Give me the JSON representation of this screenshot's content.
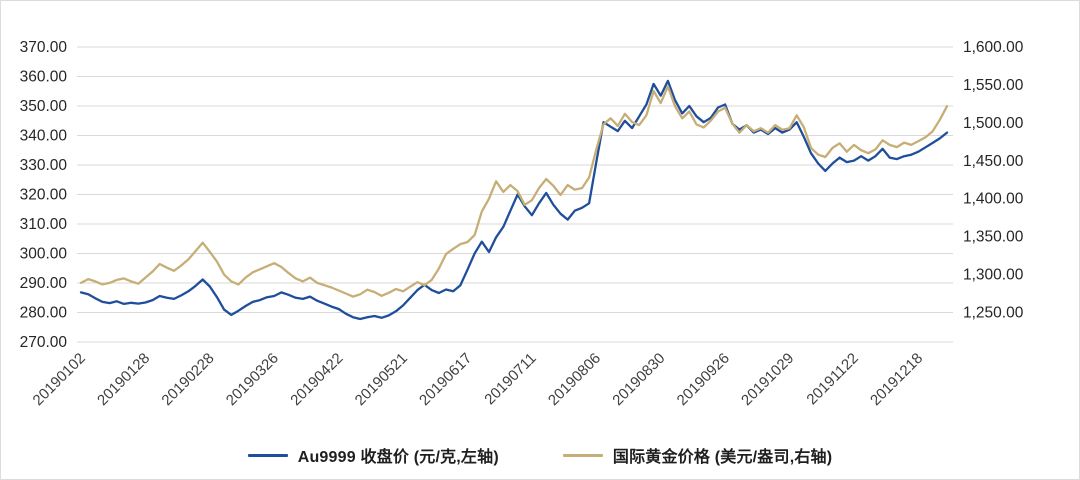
{
  "chart_data": {
    "type": "line",
    "title": "",
    "grid": "horizontal",
    "grid_color": "#d9d9d9",
    "background": "#ffffff",
    "axis_text_color": "#262626",
    "x_tick_text_color": "#3f3f3f",
    "left_axis": {
      "min": 270,
      "max": 370,
      "step": 10,
      "labels": [
        "370.00",
        "360.00",
        "350.00",
        "340.00",
        "330.00",
        "320.00",
        "310.00",
        "300.00",
        "290.00",
        "280.00",
        "270.00"
      ]
    },
    "right_axis": {
      "min": 1250,
      "max": 1600,
      "step": 50,
      "labels": [
        "1,600.00",
        "1,550.00",
        "1,500.00",
        "1,450.00",
        "1,400.00",
        "1,350.00",
        "1,300.00",
        "1,250.00"
      ]
    },
    "x_tick_labels": [
      "20190102",
      "20190128",
      "20190228",
      "20190326",
      "20190422",
      "20190521",
      "20190617",
      "20190711",
      "20190806",
      "20190830",
      "20190926",
      "20191029",
      "20191122",
      "20191218"
    ],
    "x_tick_indices": [
      0,
      9,
      18,
      27,
      36,
      45,
      54,
      63,
      72,
      81,
      90,
      99,
      108,
      117
    ],
    "series": [
      {
        "name": "Au9999 收盘价 (元/克,左轴)",
        "axis": "left",
        "color": "#1f4e9c",
        "values": [
          286.8,
          286.2,
          284.8,
          283.6,
          283.2,
          283.8,
          282.9,
          283.3,
          283.0,
          283.4,
          284.2,
          285.6,
          285.0,
          284.6,
          285.8,
          287.2,
          289.0,
          291.2,
          288.8,
          285.2,
          281.0,
          279.2,
          280.6,
          282.2,
          283.6,
          284.2,
          285.2,
          285.6,
          286.8,
          286.0,
          285.0,
          284.6,
          285.4,
          284.0,
          283.0,
          282.0,
          281.2,
          279.6,
          278.4,
          277.8,
          278.4,
          278.8,
          278.2,
          279.0,
          280.4,
          282.4,
          285.0,
          287.6,
          289.4,
          287.6,
          286.6,
          287.8,
          287.2,
          289.2,
          294.5,
          300.0,
          304.0,
          300.5,
          305.5,
          309.0,
          314.5,
          320.0,
          316.0,
          313.0,
          317.0,
          320.5,
          316.5,
          313.5,
          311.5,
          314.5,
          315.5,
          317.0,
          331.0,
          344.5,
          343.0,
          341.5,
          345.0,
          342.5,
          346.5,
          350.5,
          357.5,
          353.5,
          358.5,
          352.0,
          347.5,
          350.0,
          346.5,
          344.5,
          346.0,
          349.5,
          350.5,
          344.0,
          342.0,
          343.5,
          341.0,
          342.0,
          340.5,
          342.5,
          341.0,
          342.0,
          344.5,
          339.5,
          334.0,
          330.5,
          328.0,
          330.5,
          332.5,
          331.0,
          331.5,
          333.0,
          331.5,
          333.0,
          335.5,
          332.5,
          332.0,
          333.0,
          333.5,
          334.5,
          336.0,
          337.5,
          339.0,
          341.0
        ]
      },
      {
        "name": "国际黄金价格 (美元/盎司,右轴)",
        "axis": "right",
        "color": "#c7ae76",
        "values": [
          1289,
          1294,
          1291,
          1287,
          1289,
          1293,
          1295,
          1291,
          1288,
          1296,
          1304,
          1314,
          1309,
          1305,
          1312,
          1320,
          1331,
          1342,
          1330,
          1317,
          1300,
          1291,
          1287,
          1296,
          1303,
          1307,
          1311,
          1315,
          1310,
          1302,
          1295,
          1291,
          1296,
          1289,
          1286,
          1283,
          1279,
          1275,
          1271,
          1274,
          1280,
          1277,
          1272,
          1276,
          1281,
          1278,
          1284,
          1290,
          1286,
          1293,
          1308,
          1327,
          1334,
          1340,
          1343,
          1352,
          1383,
          1400,
          1423,
          1409,
          1418,
          1410,
          1392,
          1398,
          1414,
          1426,
          1417,
          1405,
          1418,
          1412,
          1414,
          1428,
          1465,
          1498,
          1506,
          1496,
          1512,
          1501,
          1497,
          1510,
          1542,
          1526,
          1548,
          1522,
          1506,
          1515,
          1498,
          1494,
          1503,
          1515,
          1520,
          1499,
          1487,
          1497,
          1489,
          1493,
          1487,
          1497,
          1491,
          1493,
          1510,
          1494,
          1467,
          1458,
          1455,
          1467,
          1473,
          1462,
          1471,
          1464,
          1460,
          1465,
          1477,
          1471,
          1468,
          1474,
          1471,
          1476,
          1481,
          1489,
          1504,
          1522
        ]
      }
    ],
    "legend_position": "bottom-center"
  }
}
